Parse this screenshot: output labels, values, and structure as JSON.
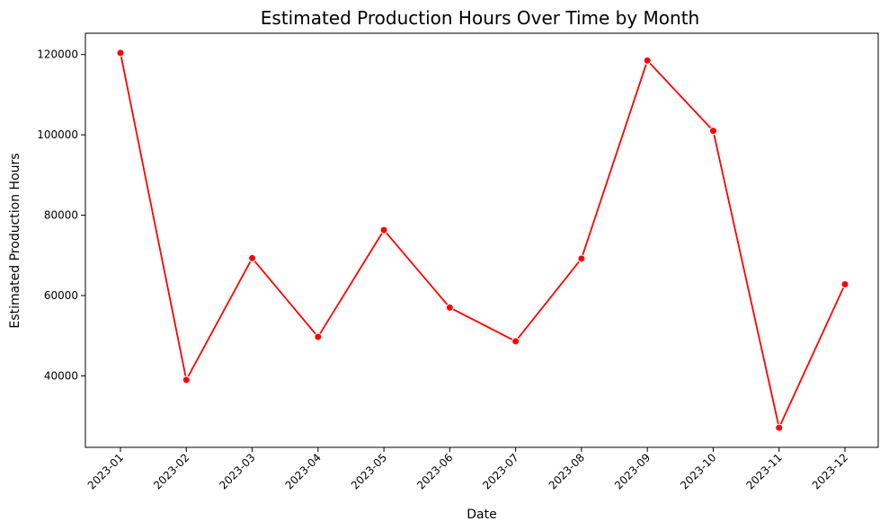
{
  "chart_data": {
    "type": "line",
    "title": "Estimated Production Hours Over Time by Month",
    "xlabel": "Date",
    "ylabel": "Estimated Production Hours",
    "categories": [
      "2023-01",
      "2023-02",
      "2023-03",
      "2023-04",
      "2023-05",
      "2023-06",
      "2023-07",
      "2023-08",
      "2023-09",
      "2023-10",
      "2023-11",
      "2023-12"
    ],
    "series": [
      {
        "values": [
          120400,
          39000,
          69300,
          49700,
          76300,
          57000,
          48600,
          69200,
          118500,
          101000,
          27100,
          62800
        ],
        "color": "#ff0000"
      }
    ],
    "yticks": [
      40000,
      60000,
      80000,
      100000,
      120000
    ],
    "ylim": [
      22200,
      125300
    ],
    "grid": false,
    "legend": "none"
  }
}
